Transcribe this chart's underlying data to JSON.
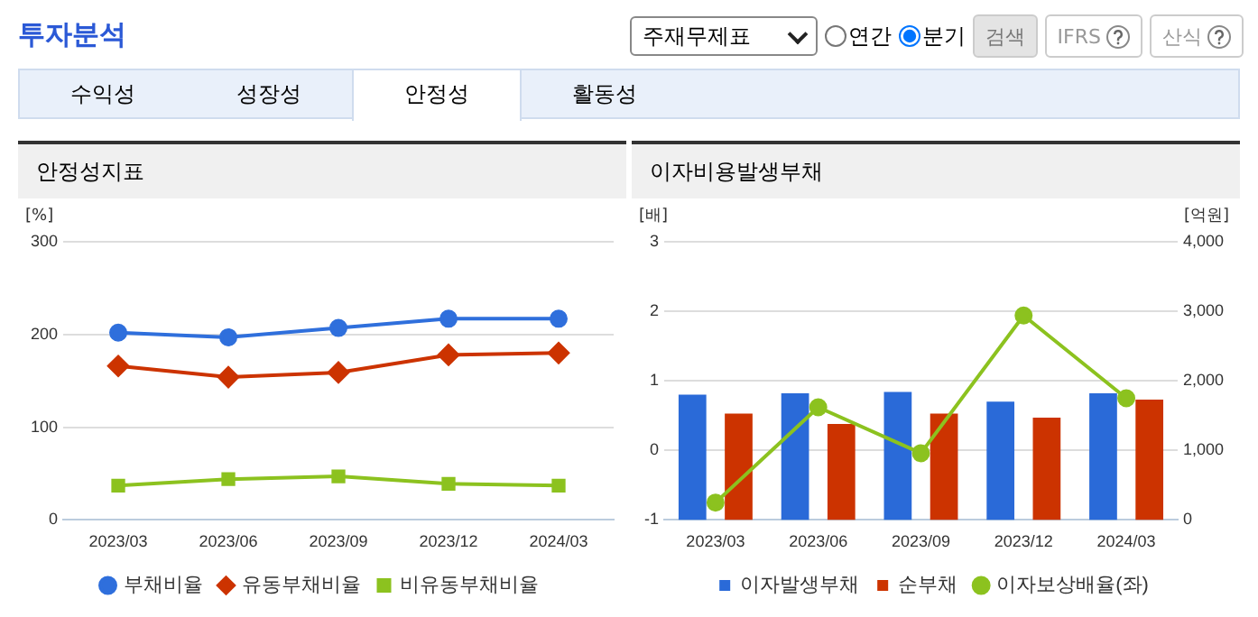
{
  "chart_data": [
    {
      "type": "other",
      "title": "투자분석",
      "annotations": [
        "주재무제표",
        "연간",
        "분기",
        "검색",
        "IFRS",
        "산식",
        "수익성",
        "성장성",
        "안정성",
        "활동성"
      ]
    },
    {
      "type": "line",
      "title": "안정성지표",
      "ylabel": "[%]",
      "categories": [
        "2023/03",
        "2023/06",
        "2023/09",
        "2023/12",
        "2024/03"
      ],
      "series": [
        {
          "name": "부채비율",
          "color": "#2f6fdc",
          "marker": "circle",
          "values": [
            202,
            197,
            207,
            217,
            217
          ]
        },
        {
          "name": "유동부채비율",
          "color": "#cc3300",
          "marker": "diamond",
          "values": [
            166,
            154,
            159,
            178,
            180
          ]
        },
        {
          "name": "비유동부채비율",
          "color": "#8cc21f",
          "marker": "square",
          "values": [
            37,
            44,
            47,
            39,
            37
          ]
        }
      ],
      "ylim": [
        0,
        300
      ],
      "yticks": [
        0,
        100,
        200,
        300
      ],
      "grid": "y",
      "legend": "bottom"
    },
    {
      "type": "bar",
      "title": "이자비용발생부채",
      "ylabel": "[배]",
      "y2label": "[억원]",
      "categories": [
        "2023/03",
        "2023/06",
        "2023/09",
        "2023/12",
        "2024/03"
      ],
      "series": [
        {
          "name": "이자발생부채",
          "color": "#2a6ad8",
          "axis": "y2",
          "values": [
            1800,
            1820,
            1840,
            1700,
            1820
          ]
        },
        {
          "name": "순부채",
          "color": "#cc3300",
          "axis": "y2",
          "values": [
            1530,
            1380,
            1530,
            1470,
            1730
          ]
        },
        {
          "name": "이자보상배율(좌)",
          "type": "line",
          "color": "#8cc21f",
          "marker": "circle",
          "axis": "y",
          "values": [
            -0.75,
            0.62,
            -0.04,
            1.94,
            0.75
          ]
        }
      ],
      "ylim": [
        -1,
        3
      ],
      "yticks": [
        -1,
        0,
        1,
        2,
        3
      ],
      "y2lim": [
        0,
        4000
      ],
      "y2ticks": [
        0,
        {
          "value": 1000,
          "label": "1,000"
        },
        {
          "value": 2000,
          "label": "2,000"
        },
        {
          "value": 3000,
          "label": "3,000"
        },
        {
          "value": 4000,
          "label": "4,000"
        }
      ],
      "grid": "y",
      "legend": "bottom"
    }
  ]
}
